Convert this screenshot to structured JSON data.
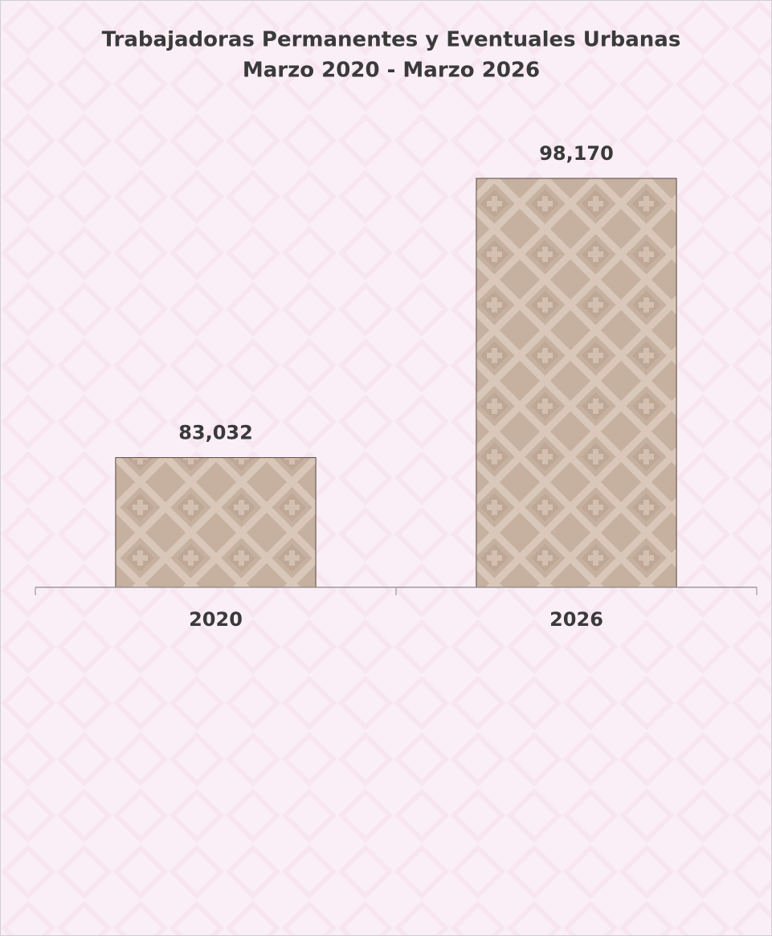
{
  "chart_data": {
    "type": "bar",
    "title": [
      "Trabajadoras Permanentes y Eventuales Urbanas",
      "Marzo 2020 - Marzo 2026"
    ],
    "categories": [
      "2020",
      "2026"
    ],
    "values": [
      83032,
      98170
    ],
    "value_labels": [
      "83,032",
      "98,170"
    ],
    "color": "#c6b09f",
    "ylim": [
      76000,
      100000
    ]
  }
}
